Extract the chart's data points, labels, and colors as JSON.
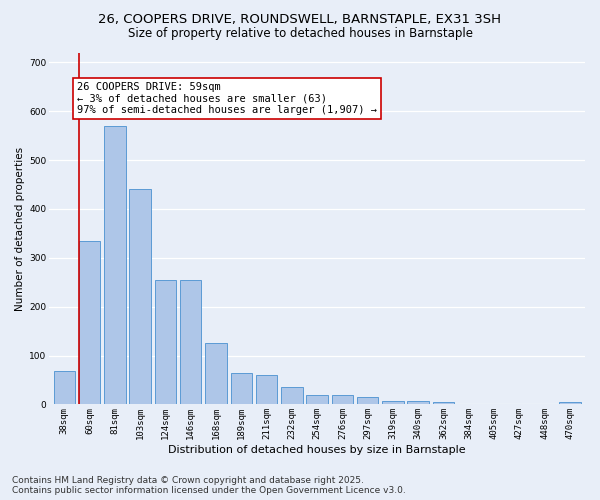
{
  "title_line1": "26, COOPERS DRIVE, ROUNDSWELL, BARNSTAPLE, EX31 3SH",
  "title_line2": "Size of property relative to detached houses in Barnstaple",
  "xlabel": "Distribution of detached houses by size in Barnstaple",
  "ylabel": "Number of detached properties",
  "categories": [
    "38sqm",
    "60sqm",
    "81sqm",
    "103sqm",
    "124sqm",
    "146sqm",
    "168sqm",
    "189sqm",
    "211sqm",
    "232sqm",
    "254sqm",
    "276sqm",
    "297sqm",
    "319sqm",
    "340sqm",
    "362sqm",
    "384sqm",
    "405sqm",
    "427sqm",
    "448sqm",
    "470sqm"
  ],
  "values": [
    68,
    335,
    570,
    440,
    255,
    255,
    125,
    65,
    60,
    35,
    20,
    20,
    15,
    7,
    8,
    5,
    0,
    0,
    0,
    0,
    5
  ],
  "bar_color": "#aec6e8",
  "bar_edge_color": "#5b9bd5",
  "vline_color": "#cc0000",
  "annotation_text": "26 COOPERS DRIVE: 59sqm\n← 3% of detached houses are smaller (63)\n97% of semi-detached houses are larger (1,907) →",
  "annotation_box_color": "#ffffff",
  "annotation_box_edgecolor": "#cc0000",
  "ylim": [
    0,
    720
  ],
  "yticks": [
    0,
    100,
    200,
    300,
    400,
    500,
    600,
    700
  ],
  "bg_color": "#e8eef8",
  "plot_bg_color": "#e8eef8",
  "footer_text": "Contains HM Land Registry data © Crown copyright and database right 2025.\nContains public sector information licensed under the Open Government Licence v3.0.",
  "title_fontsize": 9.5,
  "subtitle_fontsize": 8.5,
  "tick_fontsize": 6.5,
  "xlabel_fontsize": 8,
  "ylabel_fontsize": 7.5,
  "annotation_fontsize": 7.5,
  "footer_fontsize": 6.5
}
